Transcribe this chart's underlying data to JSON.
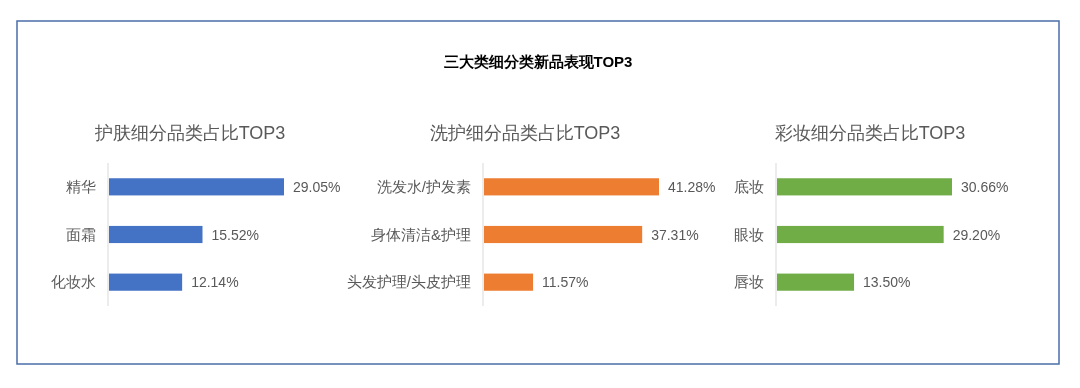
{
  "chart_data": [
    {
      "type": "other",
      "title": "三大类细分类新品表现TOP3"
    },
    {
      "type": "bar",
      "orientation": "horizontal",
      "title": "护肤细分品类占比TOP3",
      "categories": [
        "精华",
        "面霜",
        "化妆水"
      ],
      "values": [
        29.05,
        15.52,
        12.14
      ],
      "value_labels": [
        "29.05%",
        "15.52%",
        "12.14%"
      ],
      "color": "#4472c4"
    },
    {
      "type": "bar",
      "orientation": "horizontal",
      "title": "洗护细分品类占比TOP3",
      "categories": [
        "洗发水/护发素",
        "身体清洁&护理",
        "头发护理/头皮护理"
      ],
      "values": [
        41.28,
        37.31,
        11.57
      ],
      "value_labels": [
        "41.28%",
        "37.31%",
        "11.57%"
      ],
      "color": "#ed7d31"
    },
    {
      "type": "bar",
      "orientation": "horizontal",
      "title": "彩妆细分品类占比TOP3",
      "categories": [
        "底妆",
        "眼妆",
        "唇妆"
      ],
      "values": [
        30.66,
        29.2,
        13.5
      ],
      "value_labels": [
        "30.66%",
        "29.20%",
        "13.50%"
      ],
      "color": "#70ad47"
    }
  ]
}
